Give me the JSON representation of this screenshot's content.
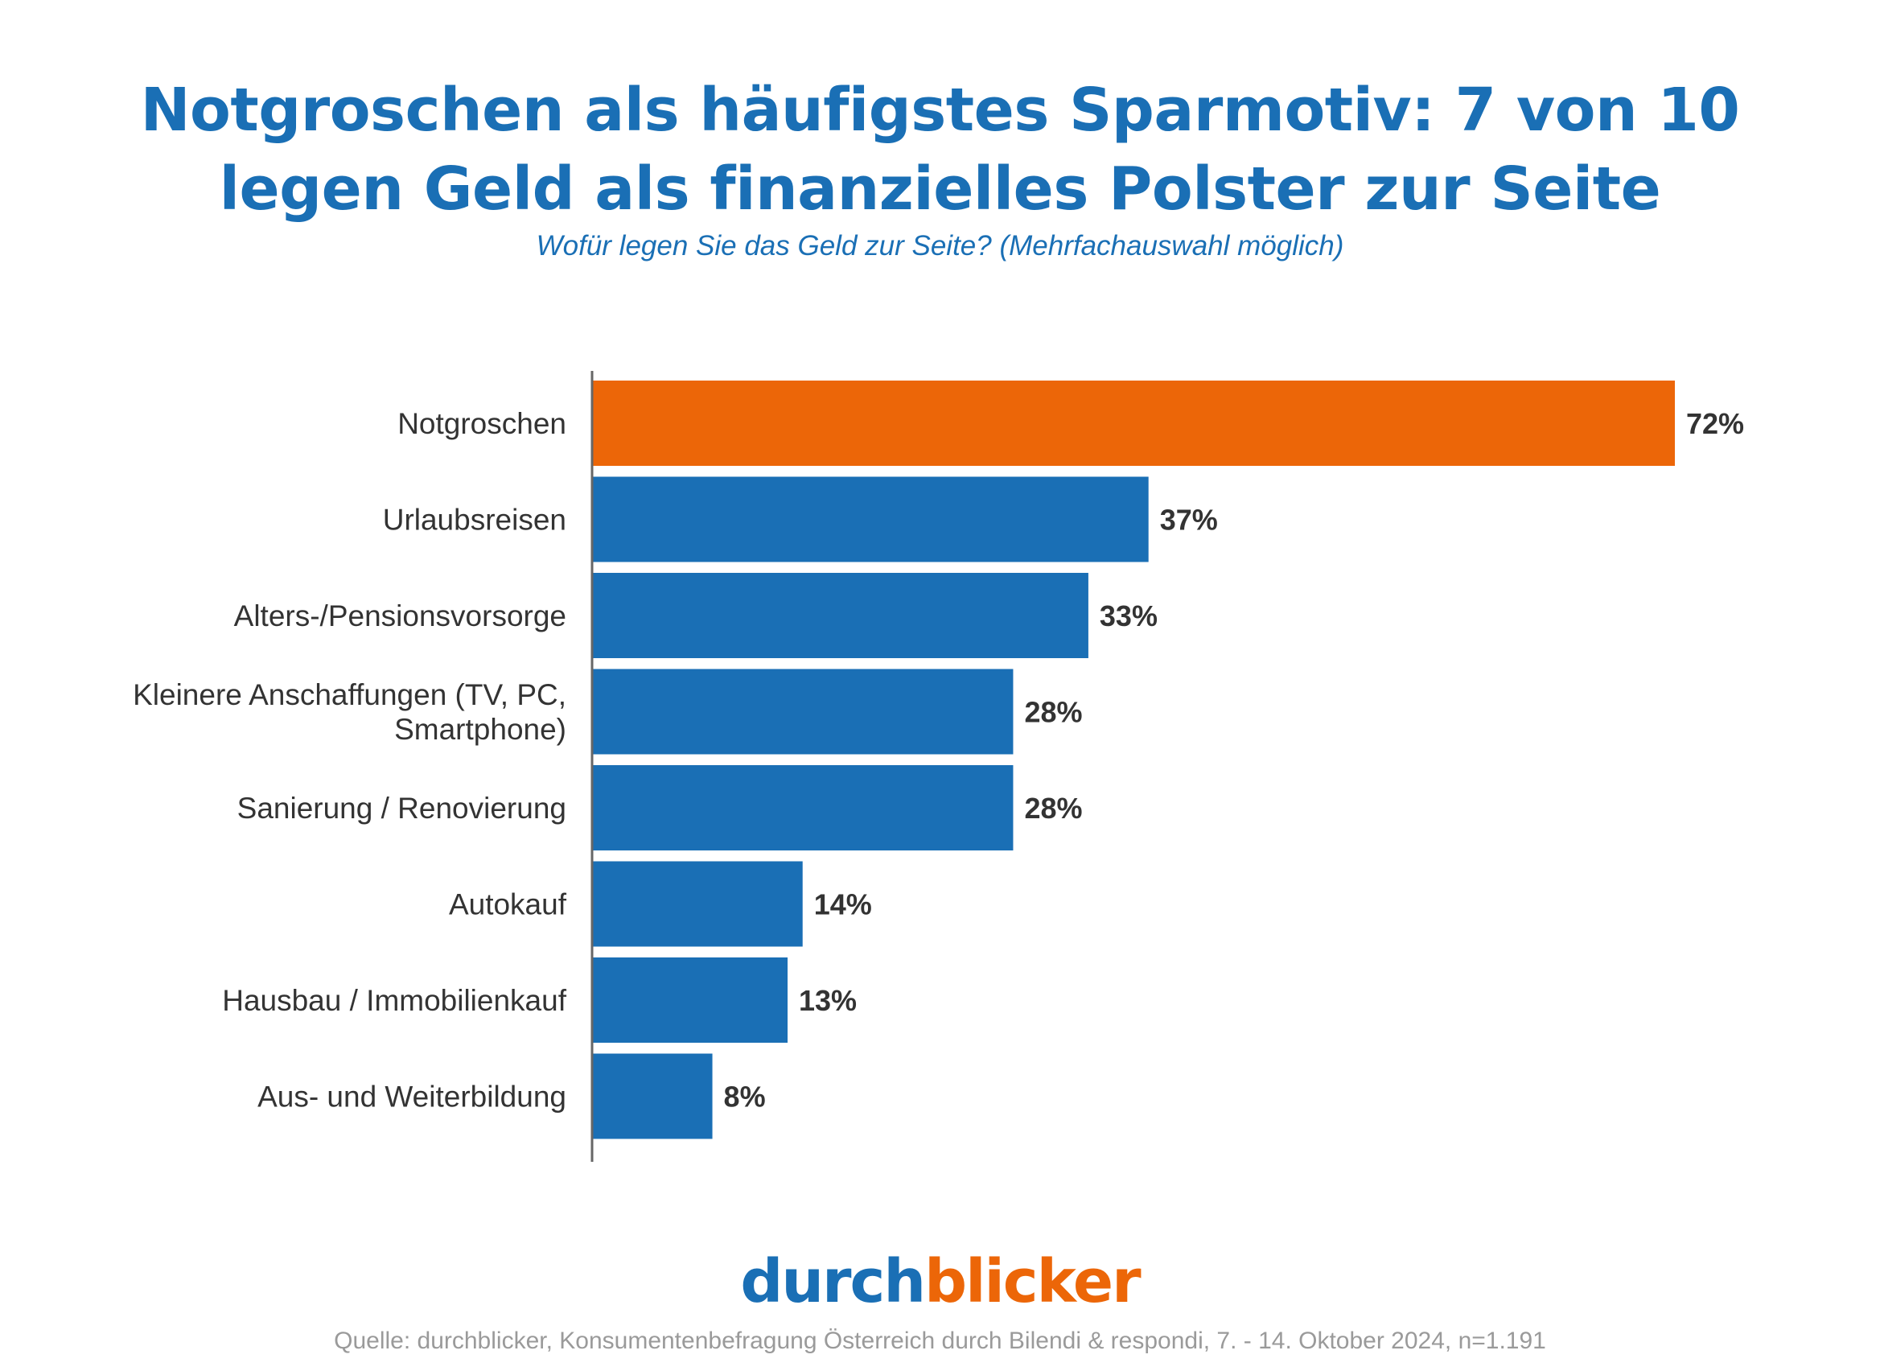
{
  "chart_data": {
    "type": "bar",
    "orientation": "horizontal",
    "title_lines": [
      "Notgroschen als häufigstes Sparmotiv: 7 von 10",
      "legen Geld als finanzielles Polster zur Seite"
    ],
    "subtitle": "Wofür legen Sie das Geld zur Seite? (Mehrfachauswahl möglich)",
    "categories": [
      [
        "Notgroschen"
      ],
      [
        "Urlaubsreisen"
      ],
      [
        "Alters-/Pensionsvorsorge"
      ],
      [
        "Kleinere Anschaffungen (TV, PC,",
        "Smartphone)"
      ],
      [
        "Sanierung / Renovierung"
      ],
      [
        "Autokauf"
      ],
      [
        "Hausbau / Immobilienkauf"
      ],
      [
        "Aus- und Weiterbildung"
      ]
    ],
    "values": [
      72,
      37,
      33,
      28,
      28,
      14,
      13,
      8
    ],
    "value_labels": [
      "72%",
      "37%",
      "33%",
      "28%",
      "28%",
      "14%",
      "13%",
      "8%"
    ],
    "unit": "%",
    "xlim": [
      0,
      72
    ],
    "grid": false,
    "legend": "none",
    "colors": {
      "highlight": "#ec6608",
      "default": "#1a6fb5",
      "axis": "#666666"
    },
    "highlight_index": 0
  },
  "logo": {
    "part1": "durch",
    "part2": "blicker"
  },
  "source": "Quelle: durchblicker, Konsumentenbefragung Österreich durch Bilendi & respondi, 7. - 14. Oktober 2024, n=1.191"
}
